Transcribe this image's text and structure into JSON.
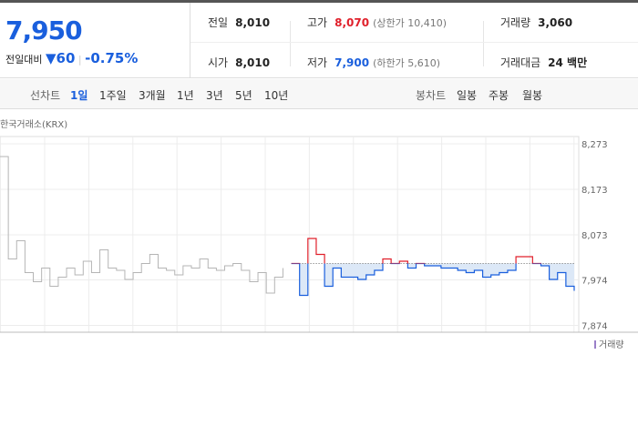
{
  "quote": {
    "price": "7,950",
    "change_label": "전일대비",
    "change": "60",
    "change_pct": "-0.75%",
    "cells": [
      [
        "전일",
        "8,010"
      ],
      [
        "고가",
        "8,070",
        "(상한가 10,410)"
      ],
      [
        "거래량",
        "3,060"
      ],
      [
        "시가",
        "8,010"
      ],
      [
        "저가",
        "7,900",
        "(하한가 5,610)"
      ],
      [
        "거래대금",
        "24 백만"
      ]
    ]
  },
  "tabs": {
    "line_label": "선차트",
    "line": [
      "1일",
      "1주일",
      "3개월",
      "1년",
      "3년",
      "5년",
      "10년"
    ],
    "candle_label": "봉차트",
    "candle": [
      "일봉",
      "주봉",
      "월봉"
    ]
  },
  "chart_data": {
    "type": "line",
    "source": "한국거래소(KRX)",
    "volume_legend": "거래량",
    "ylim": [
      7859,
      8289
    ],
    "yticks": [
      {
        "value": 7874,
        "label": "7,874"
      },
      {
        "value": 7974,
        "label": "7,974"
      },
      {
        "value": 8073,
        "label": "8,073"
      },
      {
        "value": 8173,
        "label": "8,173"
      },
      {
        "value": 8273,
        "label": "8,273"
      }
    ],
    "baseline": 8010,
    "grid": true,
    "up_color": "#e0202b",
    "down_color": "#1a5fdd",
    "fill_color": "#dce8f7",
    "series": [
      {
        "color": "#b5b5b5",
        "values": [
          8245,
          8020,
          8060,
          7990,
          7970,
          8000,
          7960,
          7980,
          8000,
          7985,
          8015,
          7990,
          8040,
          8000,
          7995,
          7975,
          7990,
          8010,
          8030,
          8000,
          7995,
          7985,
          8005,
          8000,
          8020,
          8000,
          7995,
          8005,
          8010,
          7995,
          7970,
          7990,
          7945,
          7980,
          8000,
          null,
          null,
          null,
          null,
          null,
          null,
          null,
          null,
          null,
          null,
          null,
          null,
          null,
          null,
          null,
          null,
          null,
          null,
          null,
          null,
          null,
          null,
          null,
          null,
          null,
          null,
          null,
          null,
          null,
          null,
          null,
          null,
          null,
          null,
          null
        ]
      },
      {
        "color": "#1a5fdd",
        "values": [
          null,
          null,
          null,
          null,
          null,
          null,
          null,
          null,
          null,
          null,
          null,
          null,
          null,
          null,
          null,
          null,
          null,
          null,
          null,
          null,
          null,
          null,
          null,
          null,
          null,
          null,
          null,
          null,
          null,
          null,
          null,
          null,
          null,
          null,
          null,
          8010,
          7940,
          8065,
          8030,
          7960,
          8000,
          7980,
          7980,
          7975,
          7985,
          7995,
          8020,
          8010,
          8015,
          8000,
          8010,
          8005,
          8005,
          8000,
          8000,
          7995,
          7990,
          7995,
          7980,
          7985,
          7990,
          7995,
          8025,
          8025,
          8010,
          8005,
          7975,
          7990,
          7960,
          7950
        ]
      }
    ]
  }
}
